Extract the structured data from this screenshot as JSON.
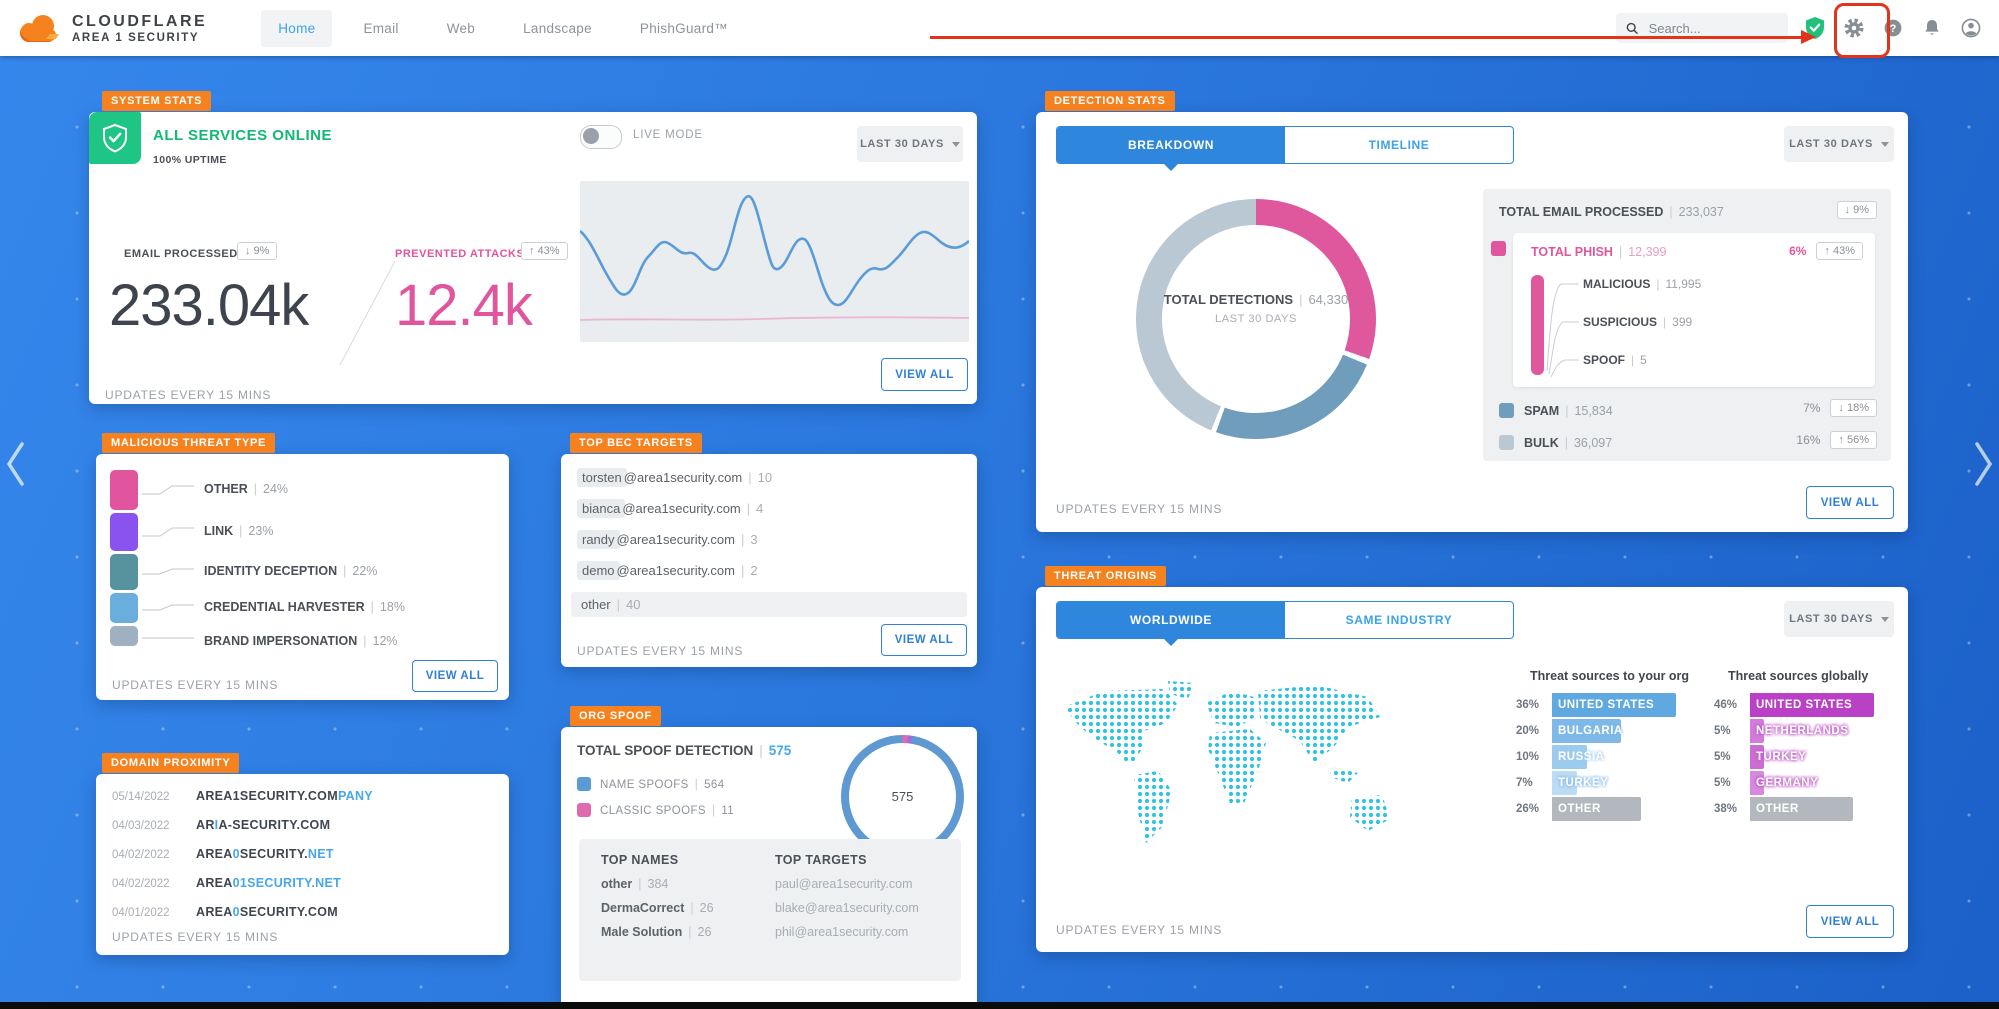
{
  "nav": {
    "brand_line1": "CLOUDFLARE",
    "brand_line2": "AREA 1 SECURITY",
    "tabs": [
      {
        "label": "Home"
      },
      {
        "label": "Email"
      },
      {
        "label": "Web"
      },
      {
        "label": "Landscape"
      },
      {
        "label": "PhishGuard™"
      }
    ],
    "search_placeholder": "Search...",
    "annotation_color": "#e2331b"
  },
  "system_stats": {
    "tag": "SYSTEM STATS",
    "status": "ALL SERVICES ONLINE",
    "uptime": "100% UPTIME",
    "live_mode_label": "LIVE MODE",
    "range_button": "LAST 30 DAYS",
    "metrics": [
      {
        "label": "EMAIL PROCESSED",
        "value": "233.04k",
        "delta": "↓ 9%"
      },
      {
        "label": "PREVENTED ATTACKS",
        "value": "12.4k",
        "delta": "↑ 43%"
      }
    ],
    "view_all": "VIEW ALL",
    "updates": "UPDATES EVERY 15 MINS"
  },
  "malicious_threat_type": {
    "tag": "MALICIOUS THREAT TYPE",
    "rows": [
      {
        "label": "OTHER",
        "pct": "24%",
        "color": "#e0559d"
      },
      {
        "label": "LINK",
        "pct": "23%",
        "color": "#8a53f0"
      },
      {
        "label": "IDENTITY DECEPTION",
        "pct": "22%",
        "color": "#57939f"
      },
      {
        "label": "CREDENTIAL HARVESTER",
        "pct": "18%",
        "color": "#6aaede"
      },
      {
        "label": "BRAND IMPERSONATION",
        "pct": "12%",
        "color": "#9fb0c0"
      }
    ],
    "view_all": "VIEW ALL",
    "updates": "UPDATES EVERY 15 MINS"
  },
  "domain_proximity": {
    "tag": "DOMAIN PROXIMITY",
    "rows": [
      {
        "date": "05/14/2022",
        "pre": "AREA1SECURITY.COM",
        "hl1": "PANY",
        "mid": "",
        "hl2": ""
      },
      {
        "date": "04/03/2022",
        "pre": "AR",
        "hl1": "I",
        "mid": "A-SECURITY.COM",
        "hl2": ""
      },
      {
        "date": "04/02/2022",
        "pre": "AREA",
        "hl1": "0",
        "mid": "SECURITY.",
        "hl2": "NET"
      },
      {
        "date": "04/02/2022",
        "pre": "AREA",
        "hl1": "01SECURITY.NET",
        "mid": "",
        "hl2": ""
      },
      {
        "date": "04/01/2022",
        "pre": "AREA",
        "hl1": "0",
        "mid": "SECURITY.COM",
        "hl2": ""
      }
    ],
    "updates": "UPDATES EVERY 15 MINS"
  },
  "top_bec_targets": {
    "tag": "TOP BEC TARGETS",
    "rows": [
      {
        "user": "torsten",
        "rest": "@area1security.com",
        "count": "10"
      },
      {
        "user": "bianca",
        "rest": "@area1security.com",
        "count": "4"
      },
      {
        "user": "randy",
        "rest": "@area1security.com",
        "count": "3"
      },
      {
        "user": "demo",
        "rest": "@area1security.com",
        "count": "2"
      },
      {
        "user": "other",
        "rest": "",
        "count": "40"
      }
    ],
    "view_all": "VIEW ALL",
    "updates": "UPDATES EVERY 15 MINS"
  },
  "org_spoof": {
    "tag": "ORG SPOOF",
    "title": "TOTAL SPOOF DETECTION",
    "title_value": "575",
    "legend": [
      {
        "label": "NAME SPOOFS",
        "value": "564",
        "color": "#5b9bd5"
      },
      {
        "label": "CLASSIC SPOOFS",
        "value": "11",
        "color": "#e06aae"
      }
    ],
    "donut_center": "575",
    "top_names_header": "TOP NAMES",
    "top_names": [
      {
        "name": "other",
        "count": "384"
      },
      {
        "name": "DermaCorrect",
        "count": "26"
      },
      {
        "name": "Male Solution",
        "count": "26"
      }
    ],
    "top_targets_header": "TOP TARGETS",
    "top_targets": [
      "paul@area1security.com",
      "blake@area1security.com",
      "phil@area1security.com"
    ]
  },
  "detection_stats": {
    "tag": "DETECTION STATS",
    "tabs": [
      {
        "label": "BREAKDOWN"
      },
      {
        "label": "TIMELINE"
      }
    ],
    "range_button": "LAST 30 DAYS",
    "donut": {
      "center_label": "TOTAL DETECTIONS",
      "center_value": "64,330",
      "center_sub": "LAST 30 DAYS",
      "segments": [
        {
          "label": "TOTAL PHISH",
          "value": 12399,
          "color": "#df579d"
        },
        {
          "label": "SPAM",
          "value": 15834,
          "color": "#6f9dbb"
        },
        {
          "label": "BULK",
          "value": 36097,
          "color": "#b9c8d3"
        }
      ]
    },
    "total_email": {
      "label": "TOTAL EMAIL PROCESSED",
      "value": "233,037",
      "delta": "↓ 9%"
    },
    "phish": {
      "label": "TOTAL PHISH",
      "value": "12,399",
      "pct": "6%",
      "delta": "↑ 43%",
      "children": [
        {
          "label": "MALICIOUS",
          "value": "11,995"
        },
        {
          "label": "SUSPICIOUS",
          "value": "399"
        },
        {
          "label": "SPOOF",
          "value": "5"
        }
      ]
    },
    "rows": [
      {
        "label": "SPAM",
        "value": "15,834",
        "pct": "7%",
        "delta": "↓ 18%",
        "color": "#6f9dbb"
      },
      {
        "label": "BULK",
        "value": "36,097",
        "pct": "16%",
        "delta": "↑ 56%",
        "color": "#b9c8d3"
      }
    ],
    "view_all": "VIEW ALL",
    "updates": "UPDATES EVERY 15 MINS"
  },
  "threat_origins": {
    "tag": "THREAT ORIGINS",
    "tabs": [
      {
        "label": "WORLDWIDE"
      },
      {
        "label": "SAME INDUSTRY"
      }
    ],
    "range_button": "LAST 30 DAYS",
    "org_column": {
      "header": "Threat sources to your org",
      "rows": [
        {
          "pct": "36%",
          "country": "UNITED STATES",
          "bar": 100
        },
        {
          "pct": "20%",
          "country": "BULGARIA",
          "bar": 56
        },
        {
          "pct": "10%",
          "country": "RUSSIA",
          "bar": 28
        },
        {
          "pct": "7%",
          "country": "TURKEY",
          "bar": 20
        },
        {
          "pct": "26%",
          "country": "OTHER",
          "bar": 72
        }
      ]
    },
    "global_column": {
      "header": "Threat sources globally",
      "rows": [
        {
          "pct": "46%",
          "country": "UNITED STATES",
          "bar": 100
        },
        {
          "pct": "5%",
          "country": "NETHERLANDS",
          "bar": 11
        },
        {
          "pct": "5%",
          "country": "TURKEY",
          "bar": 11
        },
        {
          "pct": "5%",
          "country": "GERMANY",
          "bar": 11
        },
        {
          "pct": "38%",
          "country": "OTHER",
          "bar": 83
        }
      ]
    },
    "view_all": "VIEW ALL",
    "updates": "UPDATES EVERY 15 MINS"
  },
  "colors": {
    "background_blue": "#2a77dd",
    "tag_orange": "#f5821f",
    "accent_blue": "#2f80d8",
    "status_green": "#12b873",
    "pink": "#df579d",
    "spam_blue": "#6f9dbb",
    "bulk_gray": "#b9c8d3",
    "map_turquoise": "#2fc3e2"
  }
}
